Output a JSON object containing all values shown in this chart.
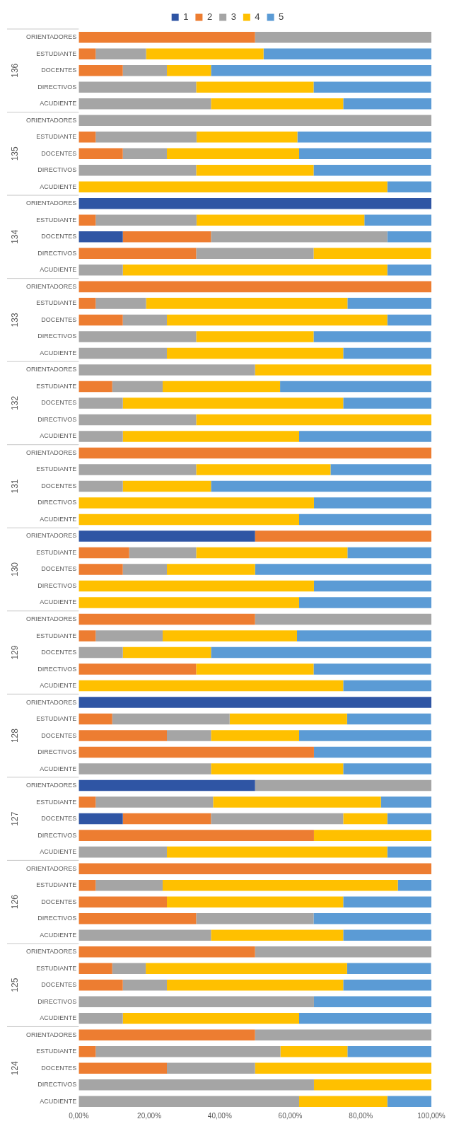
{
  "chart_data": {
    "type": "bar",
    "orientation": "horizontal",
    "stacked": true,
    "categories": [
      "ORIENTADORES",
      "ESTUDIANTE",
      "DOCENTES",
      "DIRECTIVOS",
      "ACUDIENTE",
      "ORIENTADORES",
      "ESTUDIANTE",
      "DOCENTES",
      "DIRECTIVOS",
      "ACUDIENTE",
      "ORIENTADORES",
      "ESTUDIANTE",
      "DOCENTES",
      "DIRECTIVOS",
      "ACUDIENTE",
      "ORIENTADORES",
      "ESTUDIANTE",
      "DOCENTES",
      "DIRECTIVOS",
      "ACUDIENTE",
      "ORIENTADORES",
      "ESTUDIANTE",
      "DOCENTES",
      "DIRECTIVOS",
      "ACUDIENTE",
      "ORIENTADORES",
      "ESTUDIANTE",
      "DOCENTES",
      "DIRECTIVOS",
      "ACUDIENTE",
      "ORIENTADORES",
      "ESTUDIANTE",
      "DOCENTES",
      "DIRECTIVOS",
      "ACUDIENTE",
      "ORIENTADORES",
      "ESTUDIANTE",
      "DOCENTES",
      "DIRECTIVOS",
      "ACUDIENTE",
      "ORIENTADORES",
      "ESTUDIANTE",
      "DOCENTES",
      "DIRECTIVOS",
      "ACUDIENTE",
      "ORIENTADORES",
      "ESTUDIANTE",
      "DOCENTES",
      "DIRECTIVOS",
      "ACUDIENTE",
      "ORIENTADORES",
      "ESTUDIANTE",
      "DOCENTES",
      "DIRECTIVOS",
      "ACUDIENTE",
      "ORIENTADORES",
      "ESTUDIANTE",
      "DOCENTES",
      "DIRECTIVOS",
      "ACUDIENTE",
      "ORIENTADORES",
      "ESTUDIANTE",
      "DOCENTES",
      "DIRECTIVOS",
      "ACUDIENTE"
    ],
    "annotations": [
      "136",
      "135",
      "134",
      "133",
      "132",
      "131",
      "130",
      "129",
      "128",
      "127",
      "126",
      "125",
      "124"
    ],
    "series": [
      {
        "name": "1",
        "color": "#2f55a4",
        "values": [
          0,
          0,
          0,
          0,
          0,
          0,
          0,
          0,
          0,
          0,
          100,
          0,
          12.5,
          0,
          0,
          0,
          0,
          0,
          0,
          0,
          0,
          0,
          0,
          0,
          0,
          0,
          0,
          0,
          0,
          0,
          50,
          0,
          0,
          0,
          0,
          0,
          0,
          0,
          0,
          0,
          100,
          0,
          0,
          0,
          0,
          50,
          0,
          12.5,
          0,
          0,
          0,
          0,
          0,
          0,
          0,
          0,
          0,
          0,
          0,
          0,
          0,
          0,
          0,
          0,
          0
        ]
      },
      {
        "name": "2",
        "color": "#ed7d31",
        "values": [
          50,
          4.8,
          12.5,
          0,
          0,
          0,
          4.8,
          12.5,
          0,
          0,
          0,
          4.8,
          25,
          33.3,
          0,
          100,
          4.8,
          12.5,
          0,
          0,
          0,
          9.5,
          0,
          0,
          0,
          100,
          0,
          0,
          0,
          0,
          50,
          14.3,
          12.5,
          0,
          0,
          50,
          4.8,
          0,
          33.3,
          0,
          0,
          9.5,
          25,
          66.7,
          0,
          0,
          4.8,
          25,
          66.7,
          0,
          100,
          4.8,
          25,
          33.3,
          0,
          50,
          9.5,
          12.5,
          0,
          0,
          50,
          4.8,
          25,
          0,
          0
        ]
      },
      {
        "name": "3",
        "color": "#a5a5a5",
        "values": [
          50,
          14.3,
          12.5,
          33.3,
          37.5,
          100,
          28.6,
          12.5,
          33.3,
          0,
          0,
          28.6,
          50,
          33.3,
          12.5,
          0,
          14.3,
          12.5,
          33.3,
          25,
          50,
          14.3,
          12.5,
          33.3,
          12.5,
          0,
          33.3,
          12.5,
          0,
          0,
          0,
          19,
          12.5,
          0,
          0,
          50,
          19,
          12.5,
          0,
          0,
          0,
          33.3,
          12.5,
          0,
          37.5,
          50,
          33.3,
          37.5,
          0,
          25,
          0,
          19,
          0,
          33.3,
          37.5,
          50,
          9.5,
          12.5,
          66.7,
          12.5,
          50,
          52.4,
          25,
          66.7,
          62.5
        ]
      },
      {
        "name": "4",
        "color": "#ffc000",
        "values": [
          0,
          33.3,
          12.5,
          33.3,
          37.5,
          0,
          28.6,
          37.5,
          33.3,
          87.5,
          0,
          47.6,
          0,
          33.3,
          75,
          0,
          57.1,
          62.5,
          33.3,
          50,
          50,
          33.3,
          62.5,
          66.7,
          50,
          0,
          38.1,
          25,
          66.7,
          62.5,
          0,
          42.9,
          25,
          66.7,
          62.5,
          0,
          38.1,
          25,
          33.3,
          75,
          0,
          33.3,
          25,
          0,
          37.5,
          0,
          47.6,
          12.5,
          33.3,
          62.5,
          0,
          66.7,
          50,
          0,
          37.5,
          0,
          57.1,
          50,
          0,
          50,
          0,
          19,
          50,
          33.3,
          25
        ]
      },
      {
        "name": "5",
        "color": "#5b9bd5",
        "values": [
          0,
          47.6,
          62.5,
          33.3,
          25,
          0,
          38.1,
          37.5,
          33.3,
          12.5,
          0,
          19,
          12.5,
          0,
          12.5,
          0,
          23.8,
          12.5,
          33.3,
          25,
          0,
          42.9,
          25,
          0,
          37.5,
          0,
          28.6,
          62.5,
          33.3,
          37.5,
          0,
          23.8,
          50,
          33.3,
          37.5,
          0,
          38.1,
          62.5,
          33.3,
          25,
          0,
          23.8,
          37.5,
          33.3,
          25,
          0,
          14.3,
          12.5,
          0,
          12.5,
          0,
          9.5,
          25,
          33.3,
          25,
          0,
          23.8,
          25,
          33.3,
          37.5,
          0,
          23.8,
          0,
          0,
          12.5
        ]
      }
    ],
    "xlim": [
      0,
      100
    ],
    "xticks": [
      {
        "value": 0,
        "label": "0,00%"
      },
      {
        "value": 20,
        "label": "20,00%"
      },
      {
        "value": 40,
        "label": "40,00%"
      },
      {
        "value": 60,
        "label": "60,00%"
      },
      {
        "value": 80,
        "label": "80,00%"
      },
      {
        "value": 100,
        "label": "100,00%"
      }
    ],
    "grid": false,
    "legend": "top"
  }
}
